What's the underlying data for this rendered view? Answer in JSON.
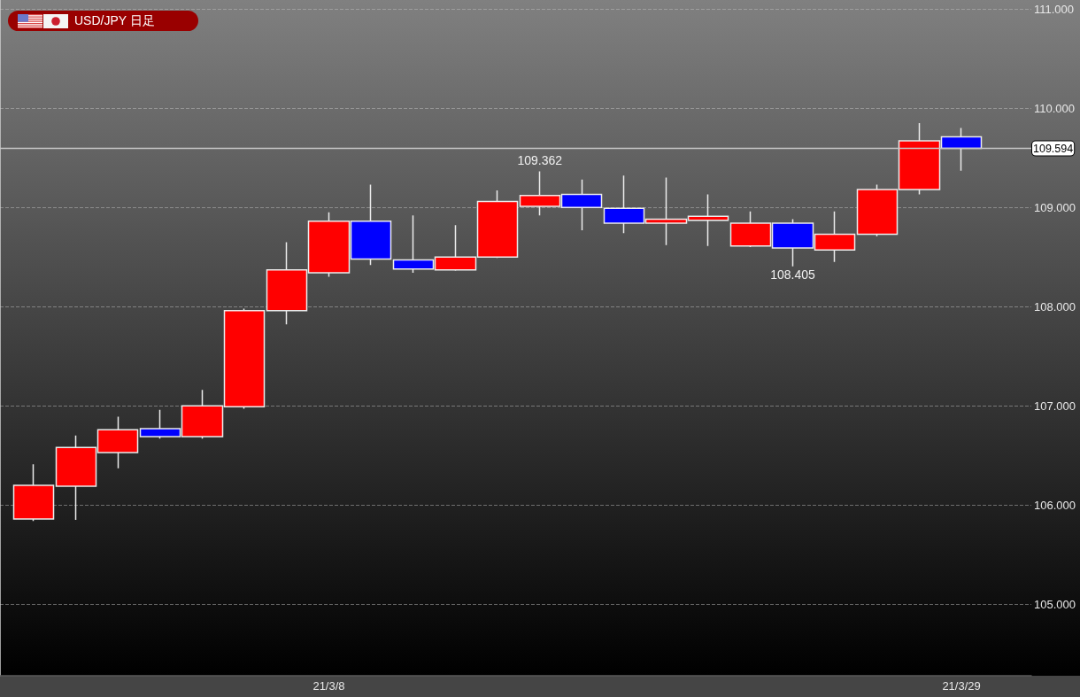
{
  "chart_data": {
    "type": "candlestick",
    "title": "USD/JPY 日足",
    "categories": [
      null,
      null,
      null,
      null,
      null,
      null,
      null,
      "21/3/8",
      null,
      null,
      null,
      null,
      null,
      null,
      null,
      null,
      null,
      null,
      null,
      null,
      null,
      null,
      "21/3/29"
    ],
    "ohlc": [
      [
        105.86,
        106.41,
        105.84,
        106.2
      ],
      [
        106.19,
        106.7,
        105.85,
        106.58
      ],
      [
        106.53,
        106.89,
        106.37,
        106.76
      ],
      [
        106.77,
        106.96,
        106.67,
        106.69
      ],
      [
        106.69,
        107.16,
        106.67,
        107.0
      ],
      [
        106.99,
        107.98,
        106.97,
        107.96
      ],
      [
        107.96,
        108.65,
        107.82,
        108.37
      ],
      [
        108.34,
        108.95,
        108.3,
        108.86
      ],
      [
        108.86,
        109.23,
        108.42,
        108.48
      ],
      [
        108.47,
        108.92,
        108.34,
        108.38
      ],
      [
        108.37,
        108.82,
        108.36,
        108.5
      ],
      [
        108.5,
        109.17,
        108.49,
        109.06
      ],
      [
        109.01,
        109.362,
        108.92,
        109.12
      ],
      [
        109.13,
        109.28,
        108.77,
        109.0
      ],
      [
        108.99,
        109.32,
        108.74,
        108.84
      ],
      [
        108.84,
        109.3,
        108.62,
        108.88
      ],
      [
        108.87,
        109.13,
        108.61,
        108.91
      ],
      [
        108.61,
        108.96,
        108.6,
        108.84
      ],
      [
        108.84,
        108.88,
        108.405,
        108.59
      ],
      [
        108.57,
        108.96,
        108.45,
        108.73
      ],
      [
        108.73,
        109.23,
        108.71,
        109.18
      ],
      [
        109.18,
        109.85,
        109.13,
        109.67
      ],
      [
        109.71,
        109.8,
        109.37,
        109.594
      ]
    ],
    "colors": [
      "#ff0000",
      "#ff0000",
      "#ff0000",
      "#0000ff",
      "#ff0000",
      "#ff0000",
      "#ff0000",
      "#ff0000",
      "#0000ff",
      "#0000ff",
      "#ff0000",
      "#ff0000",
      "#ff0000",
      "#0000ff",
      "#0000ff",
      "#ff0000",
      "#ff0000",
      "#ff0000",
      "#0000ff",
      "#ff0000",
      "#ff0000",
      "#ff0000",
      "#0000ff"
    ],
    "ylim": [
      104.28,
      111.09
    ],
    "yticks": [
      {
        "value": 105,
        "label": "105.000"
      },
      {
        "value": 106,
        "label": "106.000"
      },
      {
        "value": 107,
        "label": "107.000"
      },
      {
        "value": 108,
        "label": "108.000"
      },
      {
        "value": 109,
        "label": "109.000"
      },
      {
        "value": 110,
        "label": "110.000"
      },
      {
        "value": 111,
        "label": "111.000"
      }
    ],
    "grid": "y",
    "ref_lines": [
      {
        "axis": "y",
        "value": 109.594,
        "label": "109.594",
        "color": "#c8c8c8"
      }
    ],
    "annotations": [
      {
        "text": "109.362",
        "y": 109.362
      },
      {
        "text": "108.405",
        "y": 108.405
      }
    ]
  }
}
